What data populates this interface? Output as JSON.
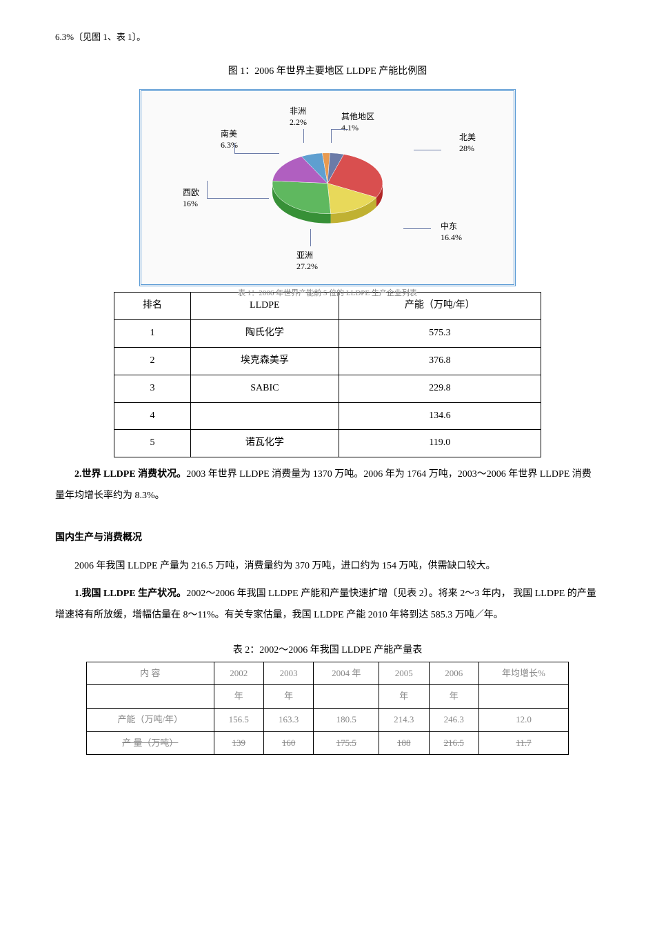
{
  "intro_line": "6.3%〔见图 1、表 1〕。",
  "figure1": {
    "title": "图 1：2006 年世界主要地区 LLDPE 产能比例图",
    "type": "pie",
    "background_color": "#fafafa",
    "border_color": "#5b9bd5",
    "slices": [
      {
        "label": "北美",
        "value_label": "28%",
        "value": 28.0,
        "color": "#d94f4f"
      },
      {
        "label": "中东",
        "value_label": "16.4%",
        "value": 16.4,
        "color": "#e8d95a"
      },
      {
        "label": "亚洲",
        "value_label": "27.2%",
        "value": 27.2,
        "color": "#5fb85f"
      },
      {
        "label": "西欧",
        "value_label": "16%",
        "value": 16.0,
        "color": "#b05fc0"
      },
      {
        "label": "南美",
        "value_label": "6.3%",
        "value": 6.3,
        "color": "#5f9fd0"
      },
      {
        "label": "非洲",
        "value_label": "2.2%",
        "value": 2.2,
        "color": "#e89a50"
      },
      {
        "label": "其他地区",
        "value_label": "4.1%",
        "value": 4.1,
        "color": "#6b7ba8"
      }
    ],
    "label_fontsize": 12,
    "pie_radius": 80
  },
  "table1_caption_faded": "表 1：2006 年世界产能前 5 位的 LLDPE 生产企业列表",
  "table1": {
    "headers": [
      "排名",
      "LLDPE",
      "产能（万吨/年）"
    ],
    "rows": [
      [
        "1",
        "陶氏化学",
        "575.3"
      ],
      [
        "2",
        "埃克森美孚",
        "376.8"
      ],
      [
        "3",
        "SABIC",
        "229.8"
      ],
      [
        "4",
        "",
        "134.6"
      ],
      [
        "5",
        "诺瓦化学",
        "119.0"
      ]
    ]
  },
  "para_world_consumption": {
    "lead_bold": "2.世界 LLDPE 消费状况。",
    "text": "2003 年世界 LLDPE 消费量为 1370 万吨。2006 年为 1764 万吨，2003～2006 年世界 LLDPE 消费量年均增长率约为 8.3%。"
  },
  "section2_heading": "国内生产与消费概况",
  "para_domestic_overview": "2006 年我国 LLDPE 产量为 216.5 万吨，消费量约为 370 万吨，进口约为 154 万吨，供需缺口较大。",
  "para_domestic_production": {
    "lead_bold": "1.我国 LLDPE 生产状况。",
    "text": "2002～2006 年我国 LLDPE 产能和产量快速扩增〔见表 2〕。将来 2～3 年内， 我国 LLDPE 的产量增速将有所放缓，增幅估量在 8～11%。有关专家估量，我国 LLDPE 产能 2010 年将到达 585.3 万吨／年。"
  },
  "table2_title": "表 2：2002～2006 年我国 LLDPE 产能产量表",
  "table2": {
    "headers": [
      "内 容",
      "2002",
      "2003",
      "2004 年",
      "2005",
      "2006",
      "年均增长%"
    ],
    "subheaders": [
      "",
      "年",
      "年",
      "",
      "年",
      "年",
      ""
    ],
    "rows": [
      [
        "产能（万吨/年）",
        "156.5",
        "163.3",
        "180.5",
        "214.3",
        "246.3",
        "12.0"
      ],
      [
        "产 量（万吨）",
        "139",
        "160",
        "175.5",
        "188",
        "216.5",
        "11.7"
      ]
    ]
  }
}
